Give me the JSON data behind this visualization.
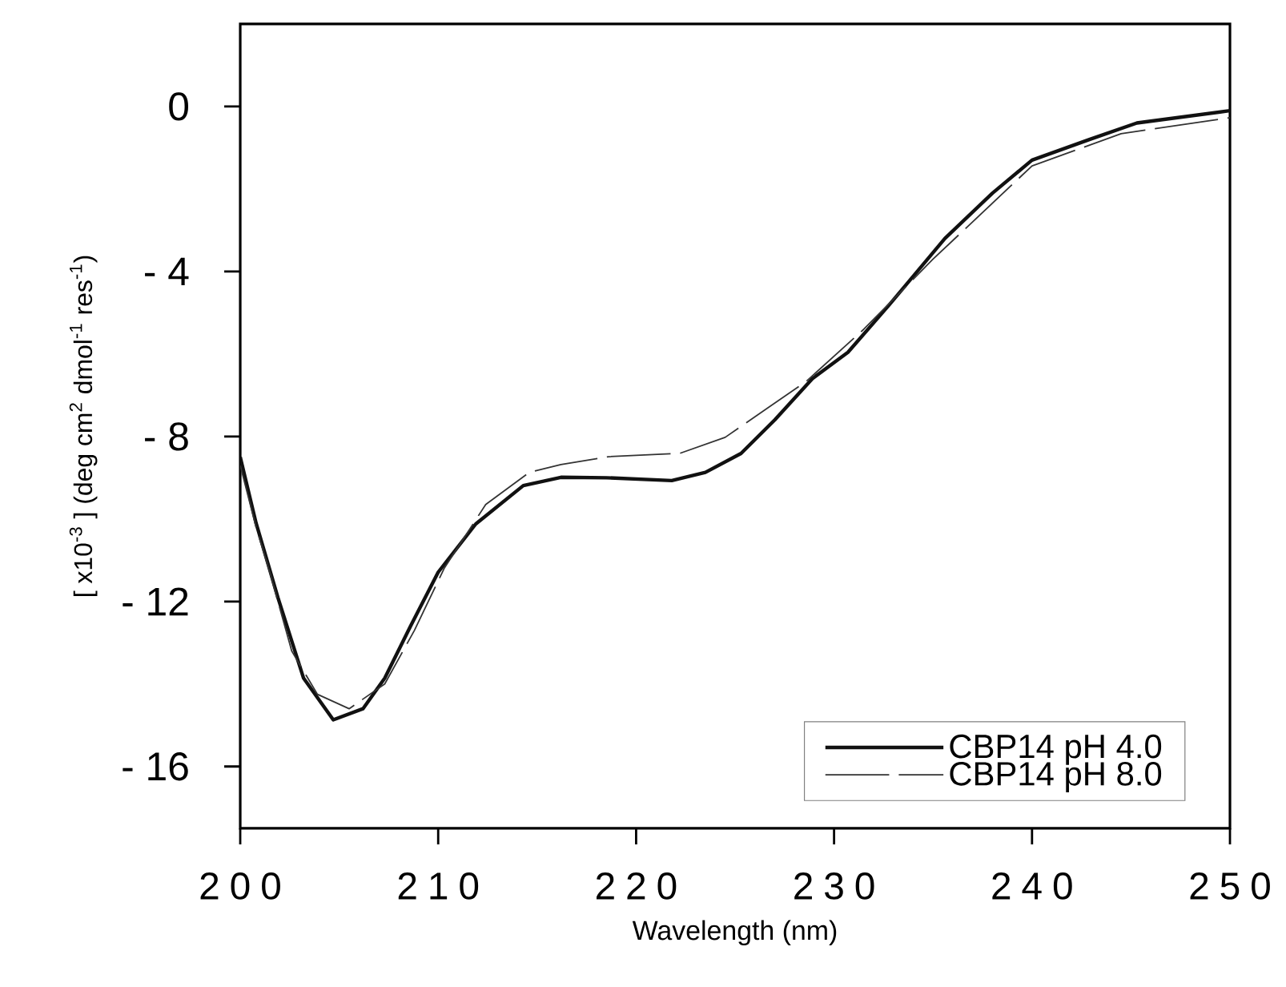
{
  "chart_data": {
    "type": "line",
    "xlabel": "Wavelength (nm)",
    "ylabel": "[  x10$^{-3}$ ] (deg cm$^{2}$ dmol$^{-1}$ res$^{-1}$)",
    "xlim": [
      200,
      250
    ],
    "xticks": [
      200,
      210,
      220,
      230,
      240,
      250
    ],
    "ylim": [
      -17.5,
      2
    ],
    "yticks": [
      0,
      {
        "value": -4,
        "label": "- 4"
      },
      {
        "value": -8,
        "label": "- 8"
      },
      {
        "value": -12,
        "label": "- 12"
      },
      {
        "value": -16,
        "label": "- 16"
      }
    ],
    "legend": "bottom right",
    "series": [
      {
        "name": "CBP14 pH 4.0",
        "color": "#111111",
        "line_style": "solid",
        "x": [
          200,
          200.8,
          201.9,
          203.2,
          204.7,
          206.2,
          207.3,
          208.6,
          210,
          211.9,
          214.3,
          216.2,
          218.5,
          221.8,
          223.5,
          225.3,
          227,
          228.9,
          230.7,
          232.8,
          235.6,
          238,
          240,
          242.9,
          245.3,
          250
        ],
        "values": [
          -8.5,
          -10.1,
          -11.9,
          -13.86,
          -14.87,
          -14.6,
          -13.86,
          -12.6,
          -11.29,
          -10.12,
          -9.19,
          -8.99,
          -9.0,
          -9.07,
          -8.87,
          -8.41,
          -7.6,
          -6.6,
          -5.96,
          -4.8,
          -3.2,
          -2.1,
          -1.3,
          -0.8,
          -0.4,
          -0.1
        ]
      },
      {
        "name": "CBP14 pH 8.0",
        "color": "#333333",
        "line_style": "dashed",
        "x": [
          200,
          200.8,
          201.5,
          202.6,
          203.9,
          205.5,
          207.3,
          208.8,
          210.3,
          212.4,
          214.6,
          216.2,
          218.6,
          222.2,
          224.5,
          228.6,
          231.5,
          235,
          240,
          244.5,
          250
        ],
        "values": [
          -8.7,
          -10.2,
          -11.3,
          -13.2,
          -14.25,
          -14.6,
          -14.0,
          -12.7,
          -11.2,
          -9.65,
          -8.87,
          -8.68,
          -8.49,
          -8.41,
          -8.02,
          -6.66,
          -5.4,
          -3.7,
          -1.44,
          -0.66,
          -0.27
        ]
      }
    ]
  }
}
